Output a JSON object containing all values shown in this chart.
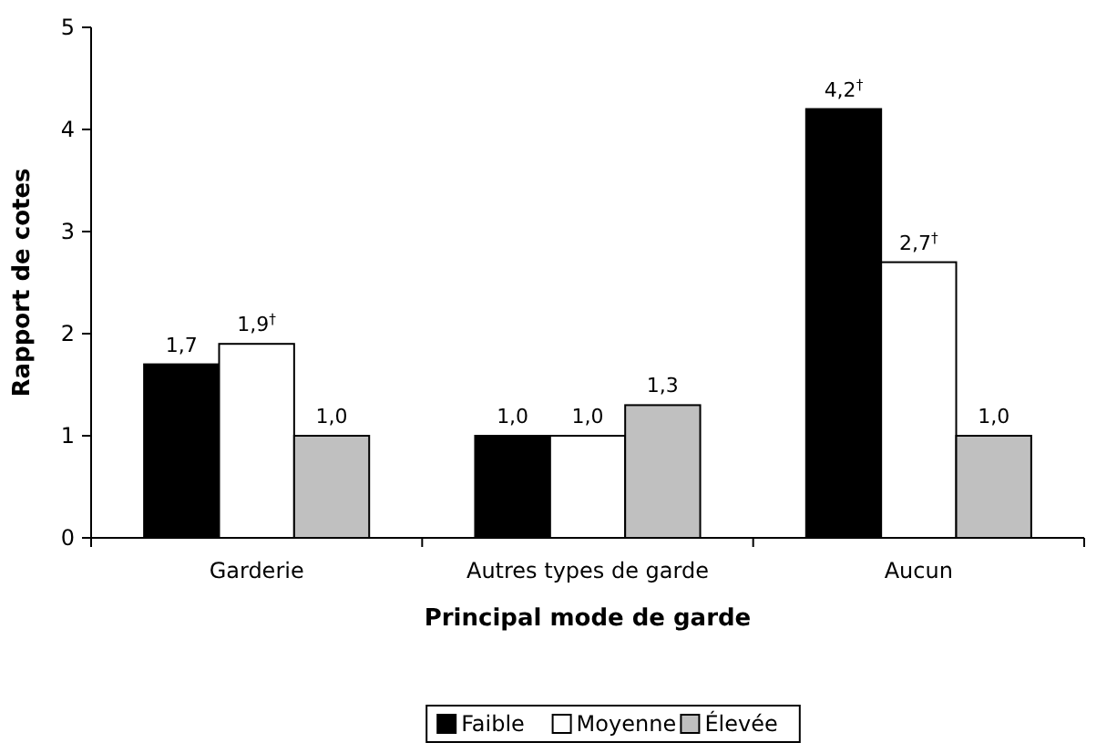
{
  "chart_data": {
    "type": "bar",
    "xlabel": "Principal mode de garde",
    "ylabel": "Rapport de cotes",
    "categories": [
      "Garderie",
      "Autres types de garde",
      "Aucun"
    ],
    "series": [
      {
        "name": "Faible",
        "color": "#000000",
        "values": [
          1.7,
          1.0,
          4.2
        ],
        "value_labels": [
          "1,7",
          "1,0",
          "4,2$^{†}$"
        ]
      },
      {
        "name": "Moyenne",
        "color": "#ffffff",
        "values": [
          1.9,
          1.0,
          2.7
        ],
        "value_labels": [
          "1,9$^{†}$",
          "1,0",
          "2,7$^{†}$"
        ]
      },
      {
        "name": "Élevée",
        "color": "#c0c0c0",
        "values": [
          1.0,
          1.3,
          1.0
        ],
        "value_labels": [
          "1,0",
          "1,3",
          "1,0"
        ]
      }
    ],
    "ylim": [
      0,
      5
    ],
    "yticks": [
      0,
      1,
      2,
      3,
      4,
      5
    ],
    "grid": false,
    "legend": "bottom"
  }
}
